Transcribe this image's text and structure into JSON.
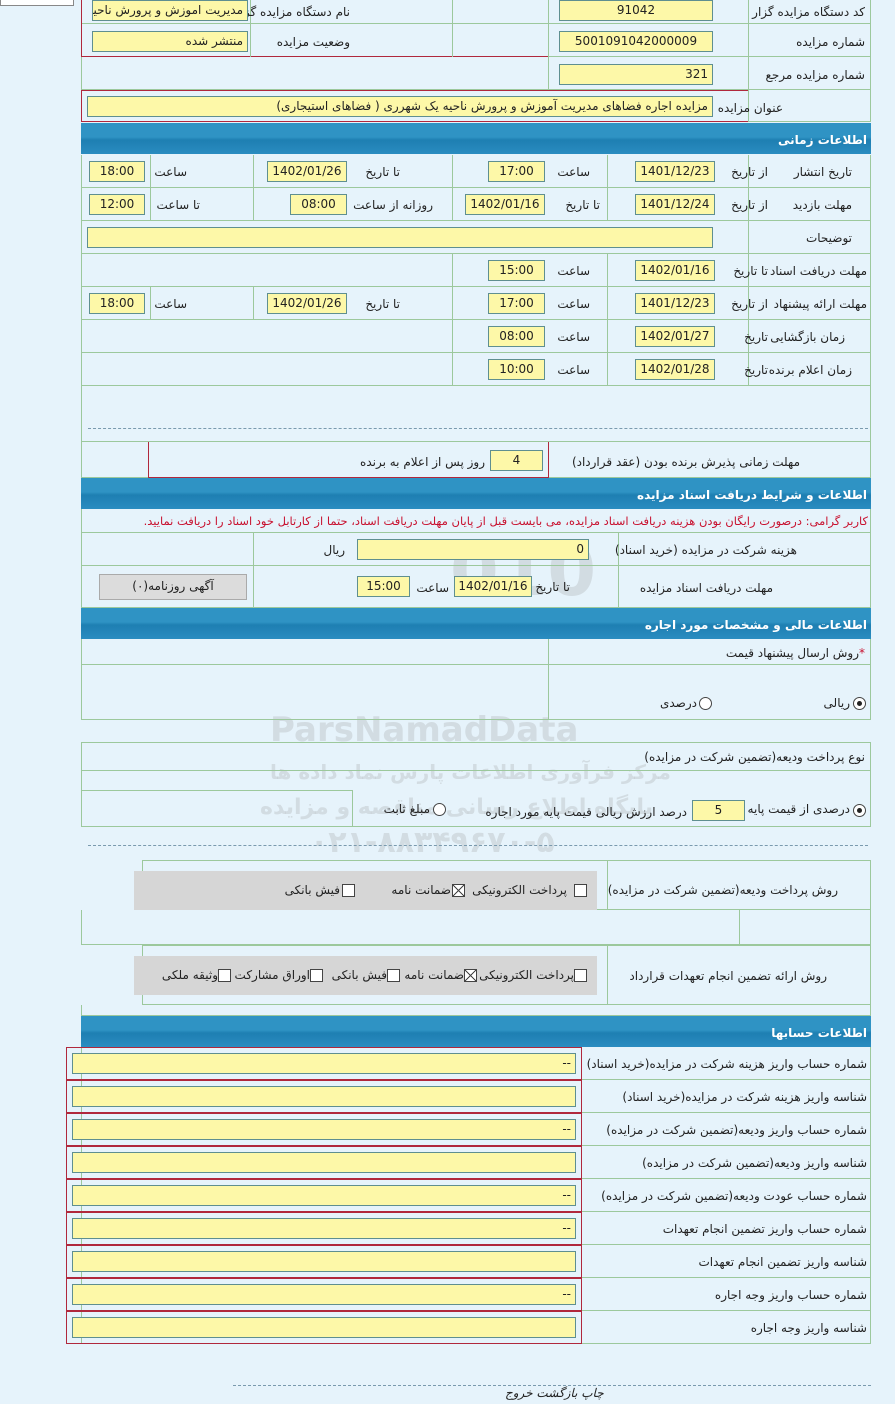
{
  "header": {
    "org_code_label": "کد دستگاه مزایده گزار",
    "org_code": "91042",
    "org_name_label": "نام دستگاه مزایده گزار",
    "org_name": "مدیریت اموزش و پرورش ناحیه",
    "auction_no_label": "شماره مزایده",
    "auction_no": "5001091042000009",
    "status_label": "وضعیت مزایده",
    "status": "منتشر شده",
    "ref_no_label": "شماره مزایده مرجع",
    "ref_no": "321",
    "title_label": "عنوان مزایده",
    "title": "مزایده اجاره فضاهای مدیریت آموزش و پرورش ناحیه یک شهرری ( فضاهای استیجاری)"
  },
  "time": {
    "section": "اطلاعات زمانی",
    "from_date": "از تاریخ",
    "to_date": "تا تاریخ",
    "hour": "ساعت",
    "date": "تاریخ",
    "to_hour": "تا ساعت",
    "daily_from": "روزانه از ساعت",
    "publish_label": "تاریخ انتشار",
    "publish_from": "1401/12/23",
    "publish_from_time": "17:00",
    "publish_to": "1402/01/26",
    "publish_to_time": "18:00",
    "visit_label": "مهلت بازدید",
    "visit_from": "1401/12/24",
    "visit_to": "1402/01/16",
    "visit_daily_from": "08:00",
    "visit_to_time": "12:00",
    "desc_label": "توضیحات",
    "desc": "",
    "doc_label": "مهلت دریافت اسناد",
    "doc_to": "1402/01/16",
    "doc_time": "15:00",
    "offer_label": "مهلت ارائه پیشنهاد",
    "offer_from": "1401/12/23",
    "offer_from_time": "17:00",
    "offer_to": "1402/01/26",
    "offer_to_time": "18:00",
    "open_label": "زمان بازگشایی",
    "open_date": "1402/01/27",
    "open_time": "08:00",
    "winner_label": "زمان اعلام برنده",
    "winner_date": "1402/01/28",
    "winner_time": "10:00",
    "accept_label": "مهلت زمانی پذیرش برنده بودن (عقد قرارداد)",
    "accept_days": "4",
    "accept_suffix": "روز پس از اعلام به برنده"
  },
  "docs": {
    "section": "اطلاعات و شرایط دریافت اسناد مزایده",
    "note_prefix": "کاربر گرامی:",
    "note": " درصورت رایگان بودن هزینه دریافت اسناد مزایده، می بایست قبل از پایان مهلت دریافت اسناد، حتما از کارتابل خود اسناد را دریافت نمایید.",
    "fee_label": "هزینه شرکت در مزایده (خرید اسناد)",
    "fee": "0",
    "currency": "ریال",
    "deadline_label": "مهلت دریافت اسناد مزایده",
    "to_date": "تا تاریخ",
    "date": "1402/01/16",
    "hour": "ساعت",
    "time": "15:00",
    "newspaper_button": "آگهی روزنامه(۰)"
  },
  "finance": {
    "section": "اطلاعات مالی و مشخصات مورد اجاره",
    "method_label": "روش ارسال پیشنهاد قیمت",
    "required_mark": "*",
    "rial": "ریالی",
    "percent": "درصدی",
    "rial_selected": true,
    "deposit_type_label": "نوع پرداخت ودیعه(تضمین شرکت در مزایده)",
    "percent_of_base": "درصدی از قیمت پایه",
    "percent_value": "5",
    "percent_suffix": "درصد ارزش ریالی قیمت پایه مورد اجاره",
    "fixed": "مبلغ ثابت",
    "percent_selected": true,
    "deposit_method_label": "روش پرداخت ودیعه(تضمین شرکت در مزایده)",
    "deposit_methods": [
      {
        "label": "پرداخت الکترونیکی",
        "checked": false
      },
      {
        "label": "ضمانت نامه",
        "checked": true
      },
      {
        "label": "فیش بانکی",
        "checked": false
      }
    ],
    "guarantee_label": "روش ارائه تضمین انجام تعهدات قرارداد",
    "guarantee_methods": [
      {
        "label": "پرداخت الکترونیکی",
        "checked": false
      },
      {
        "label": "ضمانت نامه",
        "checked": true
      },
      {
        "label": "فیش بانکی",
        "checked": false
      },
      {
        "label": "اوراق مشارکت",
        "checked": false
      },
      {
        "label": "وثیقه ملکی",
        "checked": false
      }
    ]
  },
  "accounts": {
    "section": "اطلاعات حسابها",
    "rows": [
      {
        "label": "شماره حساب واریز هزینه شرکت در مزایده(خرید اسناد)",
        "value": "--"
      },
      {
        "label": "شناسه واریز هزینه شرکت در مزایده(خرید اسناد)",
        "value": ""
      },
      {
        "label": "شماره حساب واریز ودیعه(تضمین شرکت در مزایده)",
        "value": "--"
      },
      {
        "label": "شناسه واریز ودیعه(تضمین شرکت در مزایده)",
        "value": ""
      },
      {
        "label": "شماره حساب عودت ودیعه(تضمین شرکت در مزایده)",
        "value": "--"
      },
      {
        "label": "شماره حساب واریز تضمین انجام تعهدات",
        "value": "--"
      },
      {
        "label": "شناسه واریز تضمین انجام تعهدات",
        "value": ""
      },
      {
        "label": "شماره حساب واریز وجه اجاره",
        "value": "--"
      },
      {
        "label": "شناسه واریز وجه اجاره",
        "value": ""
      }
    ]
  },
  "footer": {
    "print": "چاپ",
    "back": "بازگشت",
    "exit": "خروج"
  },
  "watermark": {
    "brand": "ParsNamadData",
    "line1": "مرکز فرآوری اطلاعات پارس نماد داده ها",
    "line2": "پایگاه اطلاع رسانی مناقصه و مزایده",
    "phone": "۰۲۱-۸۸۳۴۹۶۷۰-۵"
  }
}
